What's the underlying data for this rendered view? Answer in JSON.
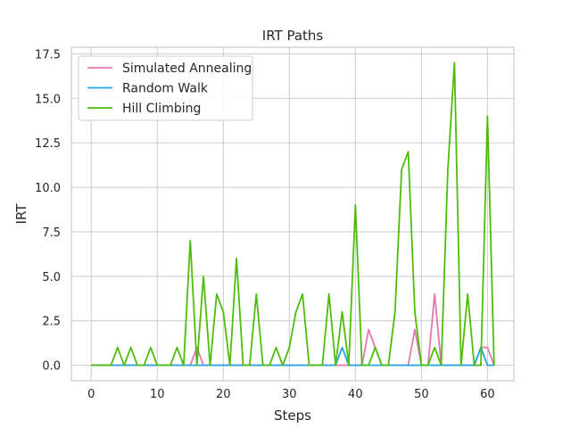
{
  "chart_data": {
    "type": "line",
    "title": "IRT Paths",
    "xlabel": "Steps",
    "ylabel": "IRT",
    "xlim": [
      -3,
      64
    ],
    "ylim": [
      -0.87,
      17.87
    ],
    "xticks": [
      0,
      10,
      20,
      30,
      40,
      50,
      60
    ],
    "xtick_labels": [
      "0",
      "10",
      "20",
      "30",
      "40",
      "50",
      "60"
    ],
    "yticks": [
      0.0,
      2.5,
      5.0,
      7.5,
      10.0,
      12.5,
      15.0,
      17.5
    ],
    "ytick_labels": [
      "0.0",
      "2.5",
      "5.0",
      "7.5",
      "10.0",
      "12.5",
      "15.0",
      "17.5"
    ],
    "grid": true,
    "legend_position": "top-left",
    "series": [
      {
        "name": "Simulated Annealing",
        "color": "#e377b0",
        "x": [
          0,
          1,
          2,
          3,
          4,
          5,
          6,
          7,
          8,
          9,
          10,
          11,
          12,
          13,
          14,
          15,
          16,
          17,
          18,
          19,
          20,
          21,
          22,
          23,
          24,
          25,
          26,
          27,
          28,
          29,
          30,
          31,
          32,
          33,
          34,
          35,
          36,
          37,
          38,
          39,
          40,
          41,
          42,
          43,
          44,
          45,
          46,
          47,
          48,
          49,
          50,
          51,
          52,
          53,
          54,
          55,
          56,
          57,
          58,
          59,
          60,
          61
        ],
        "values": [
          0,
          0,
          0,
          0,
          0,
          0,
          0,
          0,
          0,
          0,
          0,
          0,
          0,
          0,
          0,
          0,
          1,
          0,
          0,
          0,
          0,
          0,
          0,
          0,
          0,
          0,
          0,
          0,
          0,
          0,
          0,
          0,
          0,
          0,
          0,
          0,
          0,
          0,
          0,
          0,
          0,
          0,
          2,
          1,
          0,
          0,
          0,
          0,
          0,
          2,
          0,
          0,
          4,
          0,
          0,
          0,
          0,
          0,
          0,
          1,
          1,
          0
        ]
      },
      {
        "name": "Random Walk",
        "color": "#1fa5e4",
        "x": [
          0,
          1,
          2,
          3,
          4,
          5,
          6,
          7,
          8,
          9,
          10,
          11,
          12,
          13,
          14,
          15,
          16,
          17,
          18,
          19,
          20,
          21,
          22,
          23,
          24,
          25,
          26,
          27,
          28,
          29,
          30,
          31,
          32,
          33,
          34,
          35,
          36,
          37,
          38,
          39,
          40,
          41,
          42,
          43,
          44,
          45,
          46,
          47,
          48,
          49,
          50,
          51,
          52,
          53,
          54,
          55,
          56,
          57,
          58,
          59,
          60,
          61
        ],
        "values": [
          0,
          0,
          0,
          0,
          0,
          0,
          0,
          0,
          0,
          0,
          0,
          0,
          0,
          0,
          0,
          0,
          0,
          0,
          0,
          0,
          0,
          0,
          0,
          0,
          0,
          0,
          0,
          0,
          0,
          0,
          0,
          0,
          0,
          0,
          0,
          0,
          0,
          0,
          1,
          0,
          0,
          0,
          0,
          0,
          0,
          0,
          0,
          0,
          0,
          0,
          0,
          0,
          0,
          0,
          0,
          0,
          0,
          0,
          0,
          1,
          0,
          0
        ]
      },
      {
        "name": "Hill Climbing",
        "color": "#4ebd0a",
        "x": [
          0,
          1,
          2,
          3,
          4,
          5,
          6,
          7,
          8,
          9,
          10,
          11,
          12,
          13,
          14,
          15,
          16,
          17,
          18,
          19,
          20,
          21,
          22,
          23,
          24,
          25,
          26,
          27,
          28,
          29,
          30,
          31,
          32,
          33,
          34,
          35,
          36,
          37,
          38,
          39,
          40,
          41,
          42,
          43,
          44,
          45,
          46,
          47,
          48,
          49,
          50,
          51,
          52,
          53,
          54,
          55,
          56,
          57,
          58,
          59,
          60,
          61
        ],
        "values": [
          0,
          0,
          0,
          0,
          1,
          0,
          1,
          0,
          0,
          1,
          0,
          0,
          0,
          1,
          0,
          7,
          0,
          5,
          0,
          4,
          3,
          0,
          6,
          0,
          0,
          4,
          0,
          0,
          1,
          0,
          1,
          3,
          4,
          0,
          0,
          0,
          4,
          0,
          3,
          0,
          9,
          0,
          0,
          1,
          0,
          0,
          3,
          11,
          12,
          3,
          0,
          0,
          1,
          0,
          11,
          17,
          0,
          4,
          0,
          0,
          14,
          0
        ]
      }
    ]
  }
}
